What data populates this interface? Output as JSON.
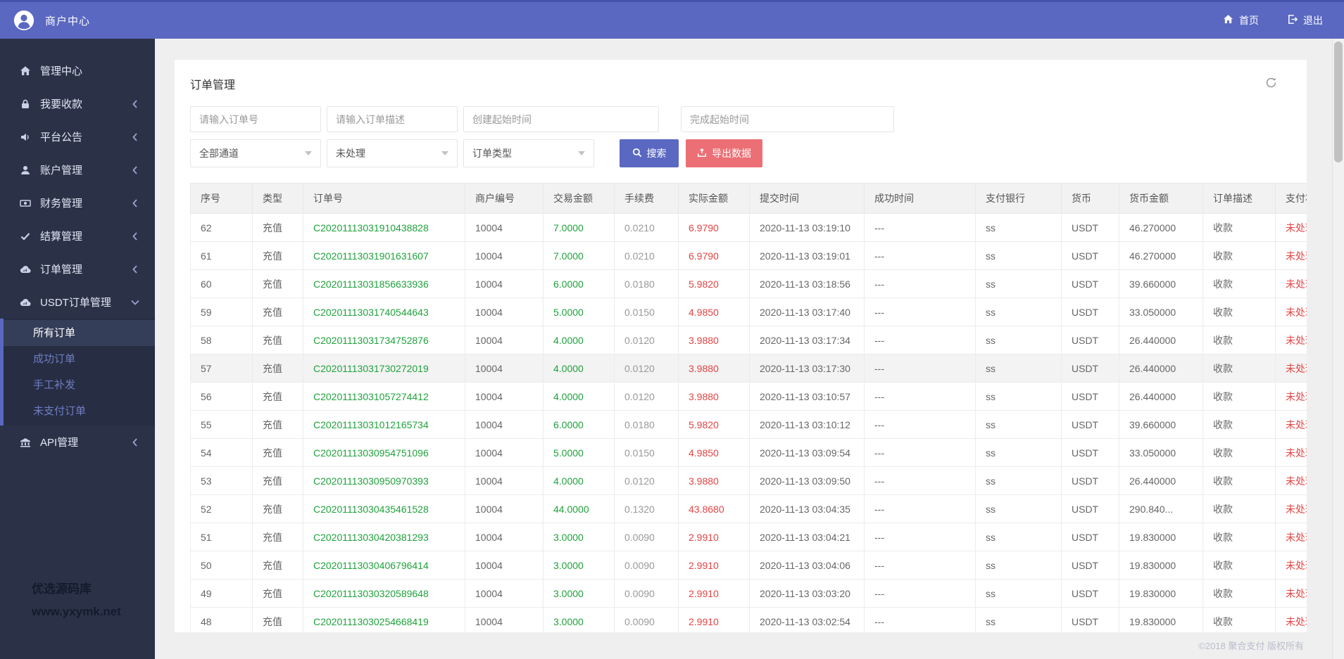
{
  "header": {
    "brand": "商户中心",
    "nav": [
      {
        "key": "home",
        "label": "首页"
      },
      {
        "key": "logout",
        "label": "退出"
      }
    ]
  },
  "sidebar": {
    "items": [
      {
        "key": "management-center",
        "label": "管理中心",
        "icon": "home"
      },
      {
        "key": "receive-payment",
        "label": "我要收款",
        "icon": "lock",
        "chevron": "left"
      },
      {
        "key": "platform-notice",
        "label": "平台公告",
        "icon": "speaker",
        "chevron": "left"
      },
      {
        "key": "account-mgmt",
        "label": "账户管理",
        "icon": "user",
        "chevron": "left"
      },
      {
        "key": "finance-mgmt",
        "label": "财务管理",
        "icon": "money",
        "chevron": "left"
      },
      {
        "key": "settlement-mgmt",
        "label": "结算管理",
        "icon": "check",
        "chevron": "left"
      },
      {
        "key": "order-mgmt",
        "label": "订单管理",
        "icon": "cloud",
        "chevron": "left"
      },
      {
        "key": "usdt-order-mgmt",
        "label": "USDT订单管理",
        "icon": "cloud",
        "chevron": "down",
        "expanded": true,
        "children": [
          {
            "key": "all-orders",
            "label": "所有订单",
            "active": true
          },
          {
            "key": "success-orders",
            "label": "成功订单"
          },
          {
            "key": "manual-reissue",
            "label": "手工补发"
          },
          {
            "key": "unpaid-orders",
            "label": "未支付订单"
          }
        ]
      },
      {
        "key": "api-mgmt",
        "label": "API管理",
        "icon": "bank",
        "chevron": "left"
      }
    ],
    "watermark_line1": "优选源码库",
    "watermark_line2": "www.yxymk.net"
  },
  "main": {
    "title": "订单管理",
    "filters": {
      "inputs": [
        {
          "placeholder": "请输入订单号"
        },
        {
          "placeholder": "请输入订单描述"
        },
        {
          "placeholder": "创建起始时间"
        },
        {
          "placeholder": "完成起始时间"
        }
      ],
      "selects": [
        "全部通道",
        "未处理",
        "订单类型"
      ],
      "search_label": "搜索",
      "export_label": "导出数据"
    },
    "table": {
      "columns": [
        {
          "key": "index",
          "label": "序号"
        },
        {
          "key": "type",
          "label": "类型"
        },
        {
          "key": "order-no",
          "label": "订单号",
          "variant": "green"
        },
        {
          "key": "merchant-no",
          "label": "商户编号"
        },
        {
          "key": "trade-amount",
          "label": "交易金额",
          "variant": "green"
        },
        {
          "key": "fee",
          "label": "手续费",
          "variant": "gray"
        },
        {
          "key": "actual-amount",
          "label": "实际金额",
          "variant": "red"
        },
        {
          "key": "submit-time",
          "label": "提交时间"
        },
        {
          "key": "success-time",
          "label": "成功时间"
        },
        {
          "key": "pay-bank",
          "label": "支付银行"
        },
        {
          "key": "currency",
          "label": "货币"
        },
        {
          "key": "currency-amount",
          "label": "货币金额"
        },
        {
          "key": "order-desc",
          "label": "订单描述"
        },
        {
          "key": "pay-status",
          "label": "支付状态",
          "variant": "red"
        }
      ],
      "highlighted_row_index": 5,
      "rows": [
        [
          "62",
          "充值",
          "C20201113031910438828",
          "10004",
          "7.0000",
          "0.0210",
          "6.9790",
          "2020-11-13 03:19:10",
          "---",
          "ss",
          "USDT",
          "46.270000",
          "收款",
          "未处理"
        ],
        [
          "61",
          "充值",
          "C20201113031901631607",
          "10004",
          "7.0000",
          "0.0210",
          "6.9790",
          "2020-11-13 03:19:01",
          "---",
          "ss",
          "USDT",
          "46.270000",
          "收款",
          "未处理"
        ],
        [
          "60",
          "充值",
          "C20201113031856633936",
          "10004",
          "6.0000",
          "0.0180",
          "5.9820",
          "2020-11-13 03:18:56",
          "---",
          "ss",
          "USDT",
          "39.660000",
          "收款",
          "未处理"
        ],
        [
          "59",
          "充值",
          "C20201113031740544643",
          "10004",
          "5.0000",
          "0.0150",
          "4.9850",
          "2020-11-13 03:17:40",
          "---",
          "ss",
          "USDT",
          "33.050000",
          "收款",
          "未处理"
        ],
        [
          "58",
          "充值",
          "C20201113031734752876",
          "10004",
          "4.0000",
          "0.0120",
          "3.9880",
          "2020-11-13 03:17:34",
          "---",
          "ss",
          "USDT",
          "26.440000",
          "收款",
          "未处理"
        ],
        [
          "57",
          "充值",
          "C20201113031730272019",
          "10004",
          "4.0000",
          "0.0120",
          "3.9880",
          "2020-11-13 03:17:30",
          "---",
          "ss",
          "USDT",
          "26.440000",
          "收款",
          "未处理"
        ],
        [
          "56",
          "充值",
          "C20201113031057274412",
          "10004",
          "4.0000",
          "0.0120",
          "3.9880",
          "2020-11-13 03:10:57",
          "---",
          "ss",
          "USDT",
          "26.440000",
          "收款",
          "未处理"
        ],
        [
          "55",
          "充值",
          "C20201113031012165734",
          "10004",
          "6.0000",
          "0.0180",
          "5.9820",
          "2020-11-13 03:10:12",
          "---",
          "ss",
          "USDT",
          "39.660000",
          "收款",
          "未处理"
        ],
        [
          "54",
          "充值",
          "C20201113030954751096",
          "10004",
          "5.0000",
          "0.0150",
          "4.9850",
          "2020-11-13 03:09:54",
          "---",
          "ss",
          "USDT",
          "33.050000",
          "收款",
          "未处理"
        ],
        [
          "53",
          "充值",
          "C20201113030950970393",
          "10004",
          "4.0000",
          "0.0120",
          "3.9880",
          "2020-11-13 03:09:50",
          "---",
          "ss",
          "USDT",
          "26.440000",
          "收款",
          "未处理"
        ],
        [
          "52",
          "充值",
          "C20201113030435461528",
          "10004",
          "44.0000",
          "0.1320",
          "43.8680",
          "2020-11-13 03:04:35",
          "---",
          "ss",
          "USDT",
          "290.840...",
          "收款",
          "未处理"
        ],
        [
          "51",
          "充值",
          "C20201113030420381293",
          "10004",
          "3.0000",
          "0.0090",
          "2.9910",
          "2020-11-13 03:04:21",
          "---",
          "ss",
          "USDT",
          "19.830000",
          "收款",
          "未处理"
        ],
        [
          "50",
          "充值",
          "C20201113030406796414",
          "10004",
          "3.0000",
          "0.0090",
          "2.9910",
          "2020-11-13 03:04:06",
          "---",
          "ss",
          "USDT",
          "19.830000",
          "收款",
          "未处理"
        ],
        [
          "49",
          "充值",
          "C20201113030320589648",
          "10004",
          "3.0000",
          "0.0090",
          "2.9910",
          "2020-11-13 03:03:20",
          "---",
          "ss",
          "USDT",
          "19.830000",
          "收款",
          "未处理"
        ],
        [
          "48",
          "充值",
          "C20201113030254668419",
          "10004",
          "3.0000",
          "0.0090",
          "2.9910",
          "2020-11-13 03:02:54",
          "---",
          "ss",
          "USDT",
          "19.830000",
          "收款",
          "未处理"
        ]
      ]
    }
  },
  "footer": {
    "copyright": "©2018 聚合支付 版权所有"
  },
  "colors": {
    "accent": "#5a68c1",
    "sidebar_bg": "#2b3248",
    "export_red": "#ec6f75",
    "value_green": "#1fa23c",
    "value_red": "#e24444"
  }
}
